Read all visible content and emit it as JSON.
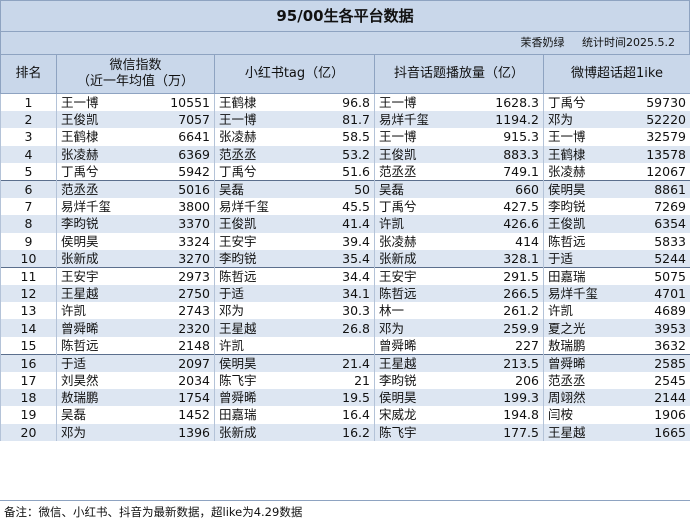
{
  "title": "95/00生各平台数据",
  "subtitle": {
    "author": "茉香奶绿",
    "stat_time": "统计时间2025.5.2"
  },
  "headers": {
    "rank": "排名",
    "wechat_line1": "微信指数",
    "wechat_line2": "（近一年均值（万）",
    "xhs": "小红书tag（亿）",
    "douyin": "抖音话题播放量（亿）",
    "weibo": "微博超话超1ike"
  },
  "rows": [
    {
      "rank": "1",
      "wx_name": "王一博",
      "wx_val": "10551",
      "xhs_name": "王鹤棣",
      "xhs_val": "96.8",
      "dy_name": "王一博",
      "dy_val": "1628.3",
      "wb_name": "丁禹兮",
      "wb_val": "59730"
    },
    {
      "rank": "2",
      "wx_name": "王俊凯",
      "wx_val": "7057",
      "xhs_name": "王一博",
      "xhs_val": "81.7",
      "dy_name": "易烊千玺",
      "dy_val": "1194.2",
      "wb_name": "邓为",
      "wb_val": "52220"
    },
    {
      "rank": "3",
      "wx_name": "王鹤棣",
      "wx_val": "6641",
      "xhs_name": "张凌赫",
      "xhs_val": "58.5",
      "dy_name": "王一博",
      "dy_val": "915.3",
      "wb_name": "王一博",
      "wb_val": "32579"
    },
    {
      "rank": "4",
      "wx_name": "张凌赫",
      "wx_val": "6369",
      "xhs_name": "范丞丞",
      "xhs_val": "53.2",
      "dy_name": "王俊凯",
      "dy_val": "883.3",
      "wb_name": "王鹤棣",
      "wb_val": "13578"
    },
    {
      "rank": "5",
      "wx_name": "丁禹兮",
      "wx_val": "5942",
      "xhs_name": "丁禹兮",
      "xhs_val": "51.6",
      "dy_name": "范丞丞",
      "dy_val": "749.1",
      "wb_name": "张凌赫",
      "wb_val": "12067"
    },
    {
      "rank": "6",
      "wx_name": "范丞丞",
      "wx_val": "5016",
      "xhs_name": "吴磊",
      "xhs_val": "50",
      "dy_name": "吴磊",
      "dy_val": "660",
      "wb_name": "侯明昊",
      "wb_val": "8861"
    },
    {
      "rank": "7",
      "wx_name": "易烊千玺",
      "wx_val": "3800",
      "xhs_name": "易烊千玺",
      "xhs_val": "45.5",
      "dy_name": "丁禹兮",
      "dy_val": "427.5",
      "wb_name": "李昀锐",
      "wb_val": "7269"
    },
    {
      "rank": "8",
      "wx_name": "李昀锐",
      "wx_val": "3370",
      "xhs_name": "王俊凯",
      "xhs_val": "41.4",
      "dy_name": "许凯",
      "dy_val": "426.6",
      "wb_name": "王俊凯",
      "wb_val": "6354"
    },
    {
      "rank": "9",
      "wx_name": "侯明昊",
      "wx_val": "3324",
      "xhs_name": "王安宇",
      "xhs_val": "39.4",
      "dy_name": "张凌赫",
      "dy_val": "414",
      "wb_name": "陈哲远",
      "wb_val": "5833"
    },
    {
      "rank": "10",
      "wx_name": "张新成",
      "wx_val": "3270",
      "xhs_name": "李昀锐",
      "xhs_val": "35.4",
      "dy_name": "张新成",
      "dy_val": "328.1",
      "wb_name": "于适",
      "wb_val": "5244"
    },
    {
      "rank": "11",
      "wx_name": "王安宇",
      "wx_val": "2973",
      "xhs_name": "陈哲远",
      "xhs_val": "34.4",
      "dy_name": "王安宇",
      "dy_val": "291.5",
      "wb_name": "田嘉瑞",
      "wb_val": "5075"
    },
    {
      "rank": "12",
      "wx_name": "王星越",
      "wx_val": "2750",
      "xhs_name": "于适",
      "xhs_val": "34.1",
      "dy_name": "陈哲远",
      "dy_val": "266.5",
      "wb_name": "易烊千玺",
      "wb_val": "4701"
    },
    {
      "rank": "13",
      "wx_name": "许凯",
      "wx_val": "2743",
      "xhs_name": "邓为",
      "xhs_val": "30.3",
      "dy_name": "林一",
      "dy_val": "261.2",
      "wb_name": "许凯",
      "wb_val": "4689"
    },
    {
      "rank": "14",
      "wx_name": "曾舜晞",
      "wx_val": "2320",
      "xhs_name": "王星越",
      "xhs_val": "26.8",
      "dy_name": "邓为",
      "dy_val": "259.9",
      "wb_name": "夏之光",
      "wb_val": "3953"
    },
    {
      "rank": "15",
      "wx_name": "陈哲远",
      "wx_val": "2148",
      "xhs_name": "许凯",
      "xhs_val": "",
      "dy_name": "曾舜晞",
      "dy_val": "227",
      "wb_name": "敖瑞鹏",
      "wb_val": "3632"
    },
    {
      "rank": "16",
      "wx_name": "于适",
      "wx_val": "2097",
      "xhs_name": "侯明昊",
      "xhs_val": "21.4",
      "dy_name": "王星越",
      "dy_val": "213.5",
      "wb_name": "曾舜晞",
      "wb_val": "2585"
    },
    {
      "rank": "17",
      "wx_name": "刘昊然",
      "wx_val": "2034",
      "xhs_name": "陈飞宇",
      "xhs_val": "21",
      "dy_name": "李昀锐",
      "dy_val": "206",
      "wb_name": "范丞丞",
      "wb_val": "2545"
    },
    {
      "rank": "18",
      "wx_name": "敖瑞鹏",
      "wx_val": "1754",
      "xhs_name": "曾舜晞",
      "xhs_val": "19.5",
      "dy_name": "侯明昊",
      "dy_val": "199.3",
      "wb_name": "周翊然",
      "wb_val": "2144"
    },
    {
      "rank": "19",
      "wx_name": "吴磊",
      "wx_val": "1452",
      "xhs_name": "田嘉瑞",
      "xhs_val": "16.4",
      "dy_name": "宋威龙",
      "dy_val": "194.8",
      "wb_name": "闫桉",
      "wb_val": "1906"
    },
    {
      "rank": "20",
      "wx_name": "邓为",
      "wx_val": "1396",
      "xhs_name": "张新成",
      "xhs_val": "16.2",
      "dy_name": "陈飞宇",
      "dy_val": "177.5",
      "wb_name": "王星越",
      "wb_val": "1665"
    }
  ],
  "footer": "备注：微信、小红书、抖音为最新数据，超like为4.29数据"
}
